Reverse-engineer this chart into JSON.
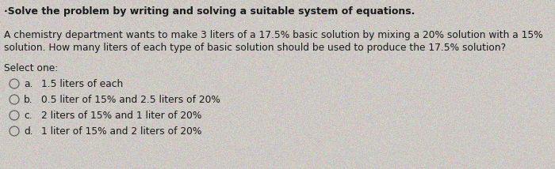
{
  "title": "·Solve the problem by writing and solving a suitable system of equations.",
  "paragraph_line1": "A chemistry department wants to make 3 liters of a 17.5% basic solution by mixing a 20% solution with a 15%",
  "paragraph_line2": "solution. How many liters of each type of basic solution should be used to produce the 17.5% solution?",
  "select_label": "Select one:",
  "options": [
    {
      "letter": "a.",
      "text": "1.5 liters of each"
    },
    {
      "letter": "b.",
      "text": "0.5 liter of 15% and 2.5 liters of 20%"
    },
    {
      "letter": "c.",
      "text": "2 liters of 15% and 1 liter of 20%"
    },
    {
      "letter": "d.",
      "text": "1 liter of 15% and 2 liters of 20%"
    }
  ],
  "bg_color": "#cdc9c4",
  "text_color": "#1a1a1a",
  "title_fontsize": 9.0,
  "body_fontsize": 8.8,
  "option_fontsize": 8.8,
  "select_fontsize": 8.8,
  "fig_width": 7.0,
  "fig_height": 2.14
}
